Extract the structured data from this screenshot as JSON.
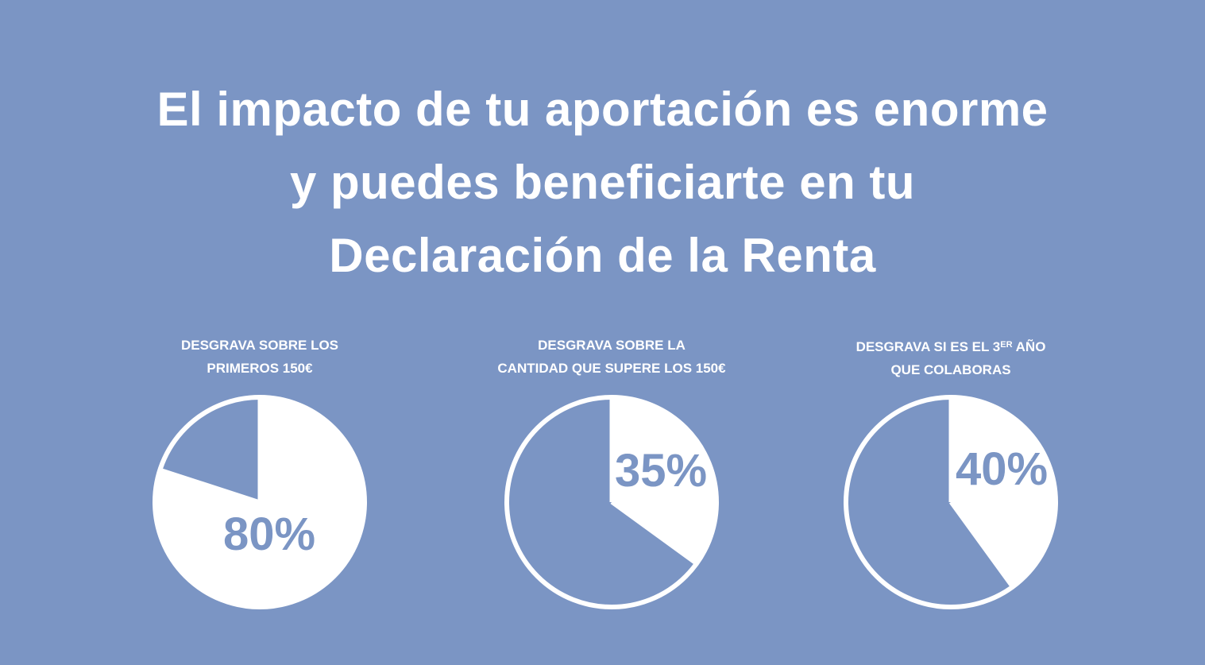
{
  "background_color": "#7b95c4",
  "accent_color": "#ffffff",
  "headline": {
    "lines": [
      "El impacto de tu aportación es enorme",
      "y puedes beneficiarte en tu",
      "Declaración de la Renta"
    ]
  },
  "captions": [
    {
      "line1": "DESGRAVA SOBRE LOS",
      "line2": "PRIMEROS 150€"
    },
    {
      "line1": "DESGRAVA SOBRE LA",
      "line2": "CANTIDAD QUE SUPERE LOS 150€"
    },
    {
      "line1_prefix": "DESGRAVA SI ES EL 3",
      "line1_sup": "ER",
      "line1_suffix": " AÑO",
      "line2": "QUE COLABORAS"
    }
  ],
  "chart_data": [
    {
      "type": "pie",
      "title": "DESGRAVA SOBRE LOS PRIMEROS 150€",
      "highlighted_percent": 80,
      "label": "80%",
      "slices": [
        {
          "name": "",
          "value": 80,
          "color": "#ffffff"
        },
        {
          "name": "",
          "value": 20,
          "color": "#7b95c4"
        }
      ]
    },
    {
      "type": "pie",
      "title": "DESGRAVA SOBRE LA CANTIDAD QUE SUPERE LOS 150€",
      "highlighted_percent": 35,
      "label": "35%",
      "slices": [
        {
          "name": "",
          "value": 35,
          "color": "#ffffff"
        },
        {
          "name": "",
          "value": 65,
          "color": "#7b95c4"
        }
      ]
    },
    {
      "type": "pie",
      "title": "DESGRAVA SI ES EL 3ER AÑO QUE COLABORAS",
      "highlighted_percent": 40,
      "label": "40%",
      "slices": [
        {
          "name": "",
          "value": 40,
          "color": "#ffffff"
        },
        {
          "name": "",
          "value": 60,
          "color": "#7b95c4"
        }
      ]
    }
  ]
}
